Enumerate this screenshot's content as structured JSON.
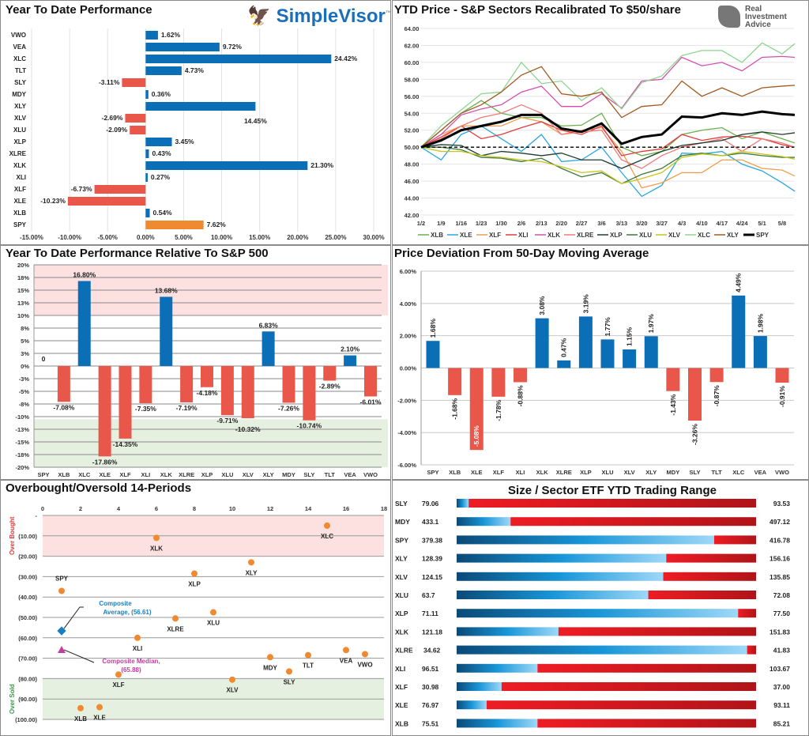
{
  "chart_data": [
    {
      "id": "ytd",
      "type": "bar",
      "orientation": "horizontal",
      "title": "Year To Date Performance",
      "categories": [
        "VWO",
        "VEA",
        "XLC",
        "TLT",
        "SLY",
        "MDY",
        "XLY",
        "XLV",
        "XLU",
        "XLP",
        "XLRE",
        "XLK",
        "XLI",
        "XLF",
        "XLE",
        "XLB",
        "SPY"
      ],
      "values": [
        1.62,
        9.72,
        24.42,
        4.73,
        -3.11,
        0.36,
        14.45,
        -2.69,
        -2.09,
        3.45,
        0.43,
        21.3,
        0.27,
        -6.73,
        -10.23,
        0.54,
        7.62
      ],
      "labels": [
        "1.62%",
        "9.72%",
        "24.42%",
        "4.73%",
        "-3.11%",
        "0.36%",
        "14.45%",
        "-2.69%",
        "-2.09%",
        "3.45%",
        "0.43%",
        "21.30%",
        "0.27%",
        "-6.73%",
        "-10.23%",
        "0.54%",
        "7.62%"
      ],
      "xlim": [
        -15,
        30
      ],
      "xticks": [
        "-15.00%",
        "-10.00%",
        "-5.00%",
        "0.00%",
        "5.00%",
        "10.00%",
        "15.00%",
        "20.00%",
        "25.00%",
        "30.00%"
      ],
      "colors": {
        "positive": "#0b6fb8",
        "negative": "#e8574a",
        "benchmark": "#f08a30"
      },
      "grid": true
    },
    {
      "id": "lines",
      "type": "line",
      "title": "YTD Price - S&P Sectors Recalibrated To $50/share",
      "x": [
        "1/2",
        "1/9",
        "1/16",
        "1/23",
        "1/30",
        "2/6",
        "2/13",
        "2/20",
        "2/27",
        "3/6",
        "3/13",
        "3/20",
        "3/27",
        "4/3",
        "4/10",
        "4/17",
        "4/24",
        "5/1",
        "5/8",
        "5/12"
      ],
      "xticks": [
        "1/2",
        "1/9",
        "1/16",
        "1/23",
        "1/30",
        "2/6",
        "2/13",
        "2/20",
        "2/27",
        "3/6",
        "3/13",
        "3/20",
        "3/27",
        "4/3",
        "4/10",
        "4/17",
        "4/24",
        "5/1",
        "5/8"
      ],
      "ylim": [
        42,
        64
      ],
      "yticks": [
        "42.00",
        "44.00",
        "46.00",
        "48.00",
        "50.00",
        "52.00",
        "54.00",
        "56.00",
        "58.00",
        "60.00",
        "62.00",
        "64.00"
      ],
      "reference_line": 50,
      "legend": "bottom",
      "grid": true,
      "series": [
        {
          "name": "XLB",
          "color": "#6ab04c",
          "values": [
            50,
            52,
            54,
            55.5,
            54,
            53.5,
            53.5,
            52.5,
            52.6,
            54,
            50,
            49,
            49.5,
            51.5,
            52,
            52.3,
            51,
            51.8,
            51,
            50.5
          ]
        },
        {
          "name": "XLE",
          "color": "#2aa7e0",
          "values": [
            50,
            48.5,
            51.5,
            52.5,
            51,
            49.5,
            51.5,
            48.3,
            48.5,
            50,
            47,
            44.2,
            45.5,
            49.3,
            49.2,
            49.5,
            48,
            47.2,
            45.8,
            44.8
          ]
        },
        {
          "name": "XLF",
          "color": "#f39c4c",
          "values": [
            50,
            51.5,
            52.5,
            52.5,
            52.5,
            53.5,
            53,
            51.5,
            52,
            52.3,
            49.5,
            45.2,
            45.8,
            47,
            47,
            48.5,
            48.5,
            47.5,
            47.3,
            46.6
          ]
        },
        {
          "name": "XLI",
          "color": "#e03c3c",
          "values": [
            50,
            51.2,
            52.5,
            51,
            51.5,
            52.3,
            53,
            52,
            51.5,
            52.5,
            49,
            49.5,
            49.8,
            51.5,
            50.8,
            51.2,
            51.3,
            51,
            50.3,
            50
          ]
        },
        {
          "name": "XLK",
          "color": "#d44fb0",
          "values": [
            50,
            51.5,
            53.8,
            54.5,
            55,
            56.5,
            57.2,
            54.8,
            54.8,
            56.3,
            54.6,
            57.8,
            58,
            60.6,
            59.6,
            60,
            59,
            60.6,
            60.7,
            60.6
          ]
        },
        {
          "name": "XLRE",
          "color": "#f07a7a",
          "values": [
            50,
            51,
            52.5,
            53.5,
            54,
            55,
            54,
            51.5,
            51.8,
            52,
            48.5,
            47.5,
            49,
            50,
            50.5,
            51,
            49.5,
            51,
            50.5,
            50
          ]
        },
        {
          "name": "XLP",
          "color": "#1e3d2f",
          "values": [
            50,
            50.3,
            50.2,
            49,
            49.5,
            49.3,
            49,
            49.3,
            48.5,
            48.5,
            47.5,
            48.5,
            49.5,
            50.2,
            50.5,
            50.8,
            51.5,
            51.8,
            51.5,
            51.7
          ]
        },
        {
          "name": "XLU",
          "color": "#3a7a3a",
          "values": [
            50,
            50,
            49.7,
            48.8,
            48.7,
            48.3,
            48.7,
            47.5,
            46.5,
            47,
            45.7,
            46.8,
            47.5,
            49,
            49.3,
            49,
            49.3,
            49,
            48.8,
            48.8
          ]
        },
        {
          "name": "XLV",
          "color": "#c8c41e",
          "values": [
            50,
            49.5,
            49.5,
            49,
            48.8,
            48.5,
            48.3,
            47.7,
            47,
            47.2,
            45.7,
            46.3,
            47,
            48.8,
            49.2,
            49,
            49.5,
            49.2,
            48.9,
            48.6
          ]
        },
        {
          "name": "XLC",
          "color": "#8fd48f",
          "values": [
            50,
            52.5,
            54.4,
            56.3,
            56.5,
            60,
            57.5,
            57.8,
            55.5,
            57,
            54.5,
            57.6,
            58.4,
            60.8,
            61.4,
            61.4,
            60,
            62.3,
            61,
            62.2
          ]
        },
        {
          "name": "XLY",
          "color": "#a05a20",
          "values": [
            50,
            52,
            54,
            55,
            56.5,
            58.5,
            59.5,
            56.3,
            56,
            56.5,
            53.5,
            54.8,
            55,
            57.8,
            56,
            57,
            56,
            57,
            57.2,
            57.3
          ]
        },
        {
          "name": "SPY",
          "color": "#000000",
          "values": [
            50,
            50.8,
            52,
            52.5,
            53,
            53.8,
            53.8,
            52.2,
            51.8,
            52.8,
            50.4,
            51.2,
            51.5,
            53.6,
            53.5,
            54,
            53.8,
            54.2,
            53.9,
            53.8
          ]
        }
      ]
    },
    {
      "id": "rel",
      "type": "bar",
      "title": "Year To Date Performance Relative To S&P 500",
      "categories": [
        "SPY",
        "XLB",
        "XLC",
        "XLE",
        "XLF",
        "XLI",
        "XLK",
        "XLRE",
        "XLP",
        "XLU",
        "XLV",
        "XLY",
        "MDY",
        "SLY",
        "TLT",
        "VEA",
        "VWO"
      ],
      "values": [
        0,
        -7.08,
        16.8,
        -17.86,
        -14.35,
        -7.35,
        13.68,
        -7.19,
        -4.18,
        -9.71,
        -10.32,
        6.83,
        -7.26,
        -10.74,
        -2.89,
        2.1,
        -6.01
      ],
      "labels": [
        "0",
        "-7.08%",
        "16.80%",
        "-17.86%",
        "-14.35%",
        "-7.35%",
        "13.68%",
        "-7.19%",
        "-4.18%",
        "-9.71%",
        "-10.32%",
        "6.83%",
        "-7.26%",
        "-10.74%",
        "-2.89%",
        "2.10%",
        "-6.01%"
      ],
      "ylim": [
        -20,
        20
      ],
      "yticks": [
        "-20%",
        "-18%",
        "-15%",
        "-13%",
        "-10%",
        "-8%",
        "-5%",
        "-3%",
        "0%",
        "3%",
        "5%",
        "8%",
        "10%",
        "13%",
        "15%",
        "18%",
        "20%"
      ],
      "bands": [
        {
          "from": 10,
          "to": 20,
          "color": "#fde0e0"
        },
        {
          "from": -20,
          "to": -10.5,
          "color": "#e6f0e0"
        }
      ],
      "colors": {
        "positive": "#0b6fb8",
        "negative": "#e8574a"
      },
      "grid": true
    },
    {
      "id": "dev",
      "type": "bar",
      "title": "Price Deviation From 50-Day Moving Average",
      "categories": [
        "SPY",
        "XLB",
        "XLE",
        "XLF",
        "XLI",
        "XLK",
        "XLRE",
        "XLP",
        "XLU",
        "XLV",
        "XLY",
        "MDY",
        "SLY",
        "TLT",
        "XLC",
        "VEA",
        "VWO"
      ],
      "values": [
        1.68,
        -1.68,
        -5.08,
        -1.78,
        -0.88,
        3.08,
        0.47,
        3.19,
        1.77,
        1.15,
        1.97,
        -1.43,
        -3.26,
        -0.87,
        4.49,
        1.98,
        -0.91
      ],
      "labels": [
        "1.68%",
        "-1.68%",
        "-5.08%",
        "-1.78%",
        "-0.88%",
        "3.08%",
        "0.47%",
        "3.19%",
        "1.77%",
        "1.15%",
        "1.97%",
        "-1.43%",
        "-3.26%",
        "-0.87%",
        "4.49%",
        "1.98%",
        "-0.91%"
      ],
      "ylim": [
        -6,
        6
      ],
      "yticks": [
        "-6.00%",
        "-4.00%",
        "-2.00%",
        "0.00%",
        "2.00%",
        "4.00%",
        "6.00%"
      ],
      "colors": {
        "positive": "#0b6fb8",
        "negative": "#e8574a"
      },
      "grid": true
    },
    {
      "id": "obos",
      "type": "scatter",
      "title": "Overbought/Oversold 14-Periods",
      "xlim": [
        0,
        18
      ],
      "xticks": [
        "0",
        "2",
        "4",
        "6",
        "8",
        "10",
        "12",
        "14",
        "16",
        "18"
      ],
      "ylim": [
        -100,
        0
      ],
      "yticks": [
        "-",
        "(10.00)",
        "(20.00)",
        "(30.00)",
        "(40.00)",
        "(50.00)",
        "(60.00)",
        "(70.00)",
        "(80.00)",
        "(90.00)",
        "(100.00)"
      ],
      "band_labels": {
        "top": "Over Bought",
        "bottom": "Over Sold"
      },
      "bands": [
        {
          "from": -20,
          "to": 0,
          "color": "#fde0e0"
        },
        {
          "from": -100,
          "to": -80,
          "color": "#e6f0e0"
        }
      ],
      "points": [
        {
          "label": "SPY",
          "x": 1,
          "y": -37
        },
        {
          "label": "XLB",
          "x": 2,
          "y": -94.5
        },
        {
          "label": "XLE",
          "x": 3,
          "y": -94
        },
        {
          "label": "XLF",
          "x": 4,
          "y": -78
        },
        {
          "label": "XLI",
          "x": 5,
          "y": -60
        },
        {
          "label": "XLK",
          "x": 6,
          "y": -11
        },
        {
          "label": "XLRE",
          "x": 7,
          "y": -50.5
        },
        {
          "label": "XLP",
          "x": 8,
          "y": -28.5
        },
        {
          "label": "XLU",
          "x": 9,
          "y": -47.5
        },
        {
          "label": "XLV",
          "x": 10,
          "y": -80.5
        },
        {
          "label": "XLY",
          "x": 11,
          "y": -23
        },
        {
          "label": "MDY",
          "x": 12,
          "y": -69.5
        },
        {
          "label": "SLY",
          "x": 13,
          "y": -76.5
        },
        {
          "label": "TLT",
          "x": 14,
          "y": -68.5
        },
        {
          "label": "XLC",
          "x": 15,
          "y": -5
        },
        {
          "label": "VEA",
          "x": 16,
          "y": -66
        },
        {
          "label": "VWO",
          "x": 17,
          "y": -68
        }
      ],
      "composite_average": {
        "label1": "Composite",
        "label2": "Average,  (56.61)",
        "x": 1,
        "y": -56.61,
        "color": "#1a7fc0"
      },
      "composite_median": {
        "label1": "Composite Median,",
        "label2": "(65.88)",
        "x": 1,
        "y": -65.88,
        "color": "#c040a0"
      },
      "point_color": "#f08a30"
    },
    {
      "id": "range",
      "type": "table",
      "title": "Size / Sector ETF YTD Trading Range",
      "rows": [
        {
          "ticker": "SLY",
          "low": "79.06",
          "high": "93.53",
          "position": 0.04
        },
        {
          "ticker": "MDY",
          "low": "433.1",
          "high": "497.12",
          "position": 0.18
        },
        {
          "ticker": "SPY",
          "low": "379.38",
          "high": "416.78",
          "position": 0.86
        },
        {
          "ticker": "XLY",
          "low": "128.39",
          "high": "156.16",
          "position": 0.7
        },
        {
          "ticker": "XLV",
          "low": "124.15",
          "high": "135.85",
          "position": 0.69
        },
        {
          "ticker": "XLU",
          "low": "63.7",
          "high": "72.08",
          "position": 0.64
        },
        {
          "ticker": "XLP",
          "low": "71.11",
          "high": "77.50",
          "position": 0.94
        },
        {
          "ticker": "XLK",
          "low": "121.18",
          "high": "151.83",
          "position": 0.34
        },
        {
          "ticker": "XLRE",
          "low": "34.62",
          "high": "41.83",
          "position": 0.97
        },
        {
          "ticker": "XLI",
          "low": "96.51",
          "high": "103.67",
          "position": 0.27
        },
        {
          "ticker": "XLF",
          "low": "30.98",
          "high": "37.00",
          "position": 0.15
        },
        {
          "ticker": "XLE",
          "low": "76.97",
          "high": "93.11",
          "position": 0.1
        },
        {
          "ticker": "XLB",
          "low": "75.51",
          "high": "85.21",
          "position": 0.27
        }
      ]
    }
  ],
  "logos": {
    "simplevisor": "SimpleVisor",
    "tm": "™",
    "ria": [
      "Real",
      "Investment",
      "Advice"
    ]
  }
}
